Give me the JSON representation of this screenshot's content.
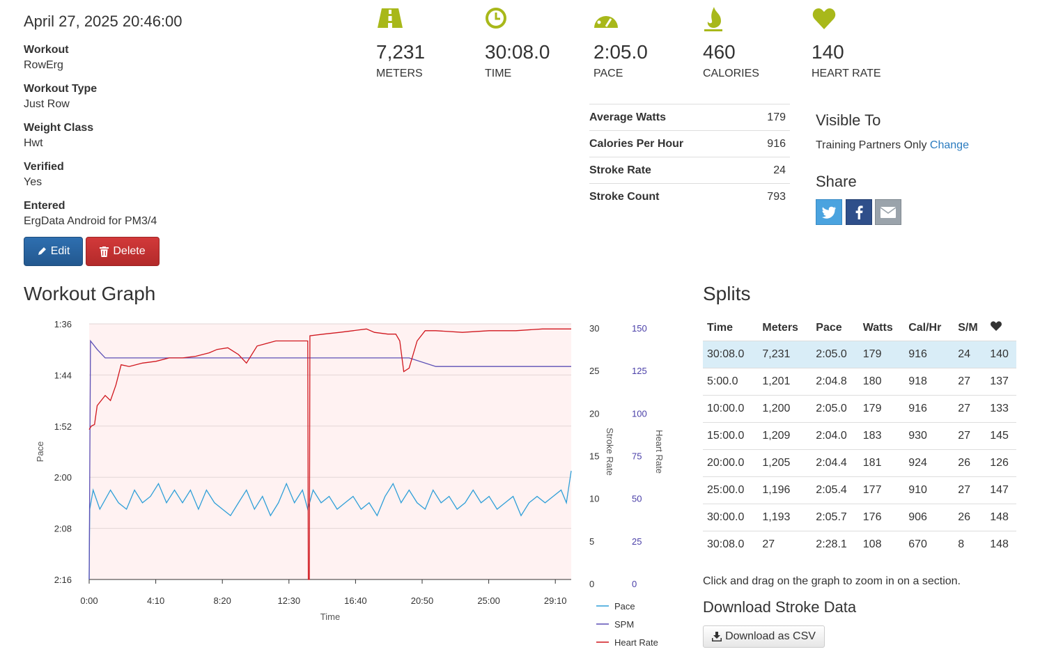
{
  "workout": {
    "date": "April 27, 2025 20:46:00",
    "details": [
      {
        "label": "Workout",
        "value": "RowErg"
      },
      {
        "label": "Workout Type",
        "value": "Just Row"
      },
      {
        "label": "Weight Class",
        "value": "Hwt"
      },
      {
        "label": "Verified",
        "value": "Yes"
      },
      {
        "label": "Entered",
        "value": "ErgData Android for PM3/4"
      }
    ],
    "edit_label": "Edit",
    "delete_label": "Delete"
  },
  "stats": [
    {
      "icon": "road-icon",
      "value": "7,231",
      "label": "METERS"
    },
    {
      "icon": "clock-icon",
      "value": "30:08.0",
      "label": "TIME"
    },
    {
      "icon": "speedometer-icon",
      "value": "2:05.0",
      "label": "PACE"
    },
    {
      "icon": "flame-icon",
      "value": "460",
      "label": "CALORIES"
    },
    {
      "icon": "heart-icon",
      "value": "140",
      "label": "HEART RATE"
    }
  ],
  "accent_color": "#a8b81a",
  "summary": [
    {
      "label": "Average Watts",
      "value": "179"
    },
    {
      "label": "Calories Per Hour",
      "value": "916"
    },
    {
      "label": "Stroke Rate",
      "value": "24"
    },
    {
      "label": "Stroke Count",
      "value": "793"
    }
  ],
  "visibility": {
    "title": "Visible To",
    "value": "Training Partners Only",
    "change_label": "Change"
  },
  "share": {
    "title": "Share",
    "buttons": [
      "twitter-icon",
      "facebook-icon",
      "envelope-icon"
    ]
  },
  "graph_title": "Workout Graph",
  "chart_data": {
    "type": "line",
    "xlabel": "Time",
    "x_ticks": [
      "0:00",
      "4:10",
      "8:20",
      "12:30",
      "16:40",
      "20:50",
      "25:00",
      "29:10"
    ],
    "x_range_seconds": [
      0,
      1808
    ],
    "left_axis": {
      "label": "Pace",
      "ticks": [
        "1:36",
        "1:44",
        "1:52",
        "2:00",
        "2:08",
        "2:16"
      ],
      "range_seconds": [
        96,
        136
      ],
      "inverted": true
    },
    "stroke_rate_axis": {
      "label": "Stroke Rate",
      "ticks": [
        "30",
        "25",
        "20",
        "15",
        "10",
        "5",
        "0"
      ],
      "range": [
        0,
        30
      ]
    },
    "heart_rate_axis": {
      "label": "Heart Rate",
      "ticks": [
        "150",
        "125",
        "100",
        "75",
        "50",
        "25",
        "0"
      ],
      "range": [
        0,
        150
      ]
    },
    "series": [
      {
        "name": "Pace",
        "color": "#2f9fd8",
        "points": [
          [
            0,
            136
          ],
          [
            2,
            125
          ],
          [
            15,
            122
          ],
          [
            40,
            125
          ],
          [
            80,
            122
          ],
          [
            110,
            124
          ],
          [
            140,
            125
          ],
          [
            170,
            122
          ],
          [
            200,
            124
          ],
          [
            230,
            123
          ],
          [
            260,
            121
          ],
          [
            290,
            124
          ],
          [
            320,
            122
          ],
          [
            350,
            124
          ],
          [
            380,
            122
          ],
          [
            410,
            125
          ],
          [
            440,
            122
          ],
          [
            470,
            124
          ],
          [
            500,
            125
          ],
          [
            530,
            126
          ],
          [
            560,
            124
          ],
          [
            590,
            122
          ],
          [
            620,
            125
          ],
          [
            650,
            123
          ],
          [
            680,
            126
          ],
          [
            710,
            124
          ],
          [
            740,
            121
          ],
          [
            770,
            124
          ],
          [
            800,
            122
          ],
          [
            820,
            125
          ],
          [
            840,
            122
          ],
          [
            870,
            124
          ],
          [
            900,
            123
          ],
          [
            930,
            125
          ],
          [
            960,
            124
          ],
          [
            990,
            123
          ],
          [
            1020,
            125
          ],
          [
            1050,
            124
          ],
          [
            1080,
            126
          ],
          [
            1110,
            123
          ],
          [
            1140,
            121
          ],
          [
            1170,
            124
          ],
          [
            1200,
            122
          ],
          [
            1230,
            124
          ],
          [
            1260,
            125
          ],
          [
            1290,
            122
          ],
          [
            1320,
            124
          ],
          [
            1350,
            123
          ],
          [
            1380,
            125
          ],
          [
            1410,
            124
          ],
          [
            1440,
            122
          ],
          [
            1470,
            124
          ],
          [
            1500,
            123
          ],
          [
            1530,
            125
          ],
          [
            1560,
            124
          ],
          [
            1590,
            123
          ],
          [
            1620,
            126
          ],
          [
            1650,
            124
          ],
          [
            1680,
            123
          ],
          [
            1710,
            124
          ],
          [
            1740,
            123
          ],
          [
            1770,
            122
          ],
          [
            1790,
            124
          ],
          [
            1808,
            119
          ]
        ]
      },
      {
        "name": "SPM",
        "color": "#5b4fb5",
        "points": [
          [
            0,
            0
          ],
          [
            5,
            28
          ],
          [
            30,
            27
          ],
          [
            60,
            26
          ],
          [
            120,
            26
          ],
          [
            200,
            26
          ],
          [
            300,
            26
          ],
          [
            400,
            26
          ],
          [
            500,
            26
          ],
          [
            600,
            26
          ],
          [
            700,
            26
          ],
          [
            800,
            26
          ],
          [
            900,
            26
          ],
          [
            1000,
            26
          ],
          [
            1100,
            26
          ],
          [
            1200,
            26
          ],
          [
            1300,
            25
          ],
          [
            1400,
            25
          ],
          [
            1500,
            25
          ],
          [
            1600,
            25
          ],
          [
            1700,
            25
          ],
          [
            1808,
            25
          ]
        ]
      },
      {
        "name": "Heart Rate",
        "color": "#d0161d",
        "points": [
          [
            0,
            88
          ],
          [
            8,
            90
          ],
          [
            20,
            91
          ],
          [
            30,
            102
          ],
          [
            60,
            108
          ],
          [
            80,
            105
          ],
          [
            100,
            114
          ],
          [
            120,
            126
          ],
          [
            150,
            125
          ],
          [
            200,
            127
          ],
          [
            250,
            128
          ],
          [
            300,
            130
          ],
          [
            350,
            130
          ],
          [
            400,
            131
          ],
          [
            450,
            133
          ],
          [
            480,
            135
          ],
          [
            520,
            136
          ],
          [
            560,
            132
          ],
          [
            590,
            127
          ],
          [
            630,
            137
          ],
          [
            700,
            140
          ],
          [
            760,
            140
          ],
          [
            800,
            140
          ],
          [
            820,
            140
          ],
          [
            822,
            0
          ],
          [
            826,
            0
          ],
          [
            828,
            143
          ],
          [
            880,
            144
          ],
          [
            940,
            145
          ],
          [
            990,
            146
          ],
          [
            1040,
            147
          ],
          [
            1070,
            145
          ],
          [
            1120,
            144
          ],
          [
            1150,
            144
          ],
          [
            1165,
            140
          ],
          [
            1180,
            122
          ],
          [
            1200,
            124
          ],
          [
            1230,
            140
          ],
          [
            1260,
            146
          ],
          [
            1300,
            146
          ],
          [
            1400,
            145
          ],
          [
            1500,
            146
          ],
          [
            1600,
            146
          ],
          [
            1700,
            147
          ],
          [
            1808,
            147
          ]
        ]
      }
    ],
    "legend_placement": "bottom-right"
  },
  "splits": {
    "title": "Splits",
    "headers": [
      "Time",
      "Meters",
      "Pace",
      "Watts",
      "Cal/Hr",
      "S/M"
    ],
    "heart_header_icon": "heart-icon",
    "rows": [
      [
        "30:08.0",
        "7,231",
        "2:05.0",
        "179",
        "916",
        "24",
        "140"
      ],
      [
        "5:00.0",
        "1,201",
        "2:04.8",
        "180",
        "918",
        "27",
        "137"
      ],
      [
        "10:00.0",
        "1,200",
        "2:05.0",
        "179",
        "916",
        "27",
        "133"
      ],
      [
        "15:00.0",
        "1,209",
        "2:04.0",
        "183",
        "930",
        "27",
        "145"
      ],
      [
        "20:00.0",
        "1,205",
        "2:04.4",
        "181",
        "924",
        "26",
        "126"
      ],
      [
        "25:00.0",
        "1,196",
        "2:05.4",
        "177",
        "910",
        "27",
        "147"
      ],
      [
        "30:00.0",
        "1,193",
        "2:05.7",
        "176",
        "906",
        "26",
        "148"
      ],
      [
        "30:08.0",
        "27",
        "2:28.1",
        "108",
        "670",
        "8",
        "148"
      ]
    ]
  },
  "zoom_hint": "Click and drag on the graph to zoom in on a section.",
  "download": {
    "title": "Download Stroke Data",
    "button_label": "Download as CSV"
  }
}
